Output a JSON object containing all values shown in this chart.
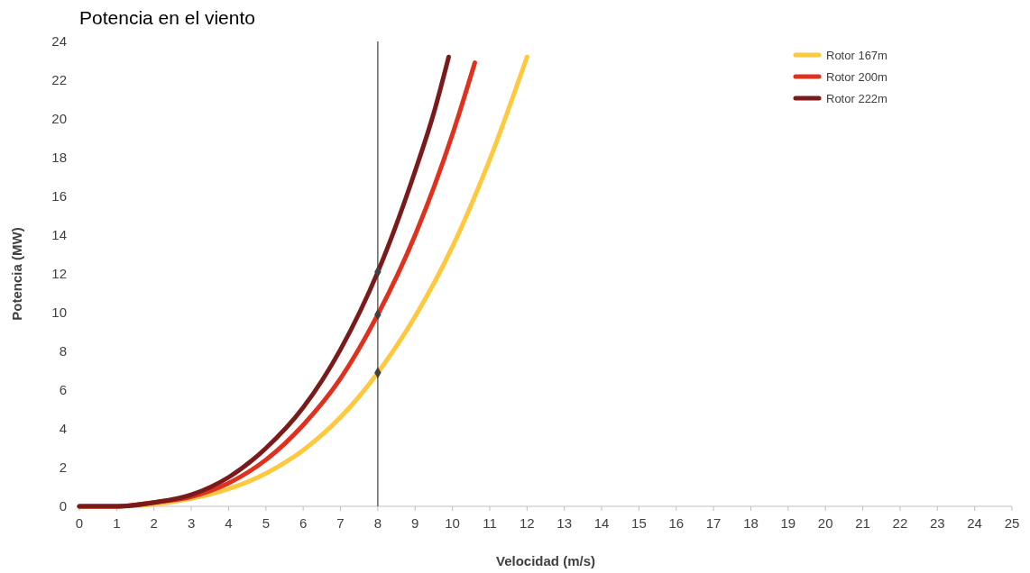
{
  "chart_data": {
    "type": "line",
    "title": "Potencia en el viento",
    "xlabel": "Velocidad (m/s)",
    "ylabel": "Potencia (MW)",
    "xlim": [
      0,
      25
    ],
    "xticks": [
      0,
      1,
      2,
      3,
      4,
      5,
      6,
      7,
      8,
      9,
      10,
      11,
      12,
      13,
      14,
      15,
      16,
      17,
      18,
      19,
      20,
      21,
      22,
      23,
      24,
      25
    ],
    "ylim": [
      0,
      24
    ],
    "yticks": [
      0,
      2,
      4,
      6,
      8,
      10,
      12,
      14,
      16,
      18,
      20,
      22,
      24
    ],
    "grid": false,
    "legend": "top right",
    "marker": "none",
    "line_style": "solid",
    "ref_lines": [
      {
        "axis": "x",
        "value": 8,
        "color": "#404040"
      }
    ],
    "series": [
      {
        "name": "Rotor 167m",
        "color": "#ffc83d",
        "x": [
          0,
          1,
          2,
          3,
          4,
          5,
          6,
          7,
          8,
          9,
          10,
          11,
          12
        ],
        "values": [
          0,
          0,
          0.1,
          0.4,
          0.9,
          1.7,
          2.9,
          4.6,
          6.9,
          9.8,
          13.4,
          17.9,
          23.2
        ]
      },
      {
        "name": "Rotor 200m",
        "color": "#e0301e",
        "x": [
          0,
          1,
          2,
          3,
          4,
          5,
          6,
          7,
          8,
          9,
          10,
          10.6
        ],
        "values": [
          0,
          0,
          0.2,
          0.5,
          1.2,
          2.4,
          4.2,
          6.6,
          9.9,
          14.0,
          19.2,
          22.9
        ]
      },
      {
        "name": "Rotor 222m",
        "color": "#7b1a1a",
        "x": [
          0,
          1,
          2,
          3,
          4,
          5,
          6,
          7,
          8,
          9,
          9.5,
          9.9
        ],
        "values": [
          0,
          0,
          0.2,
          0.6,
          1.5,
          3.0,
          5.1,
          8.1,
          12.1,
          17.3,
          20.3,
          23.2
        ]
      },
      {
        "type": "scatter",
        "color": "#404040",
        "marker": "diamond",
        "x": [
          8,
          8,
          8
        ],
        "values": [
          6.9,
          9.9,
          12.1
        ]
      }
    ]
  }
}
